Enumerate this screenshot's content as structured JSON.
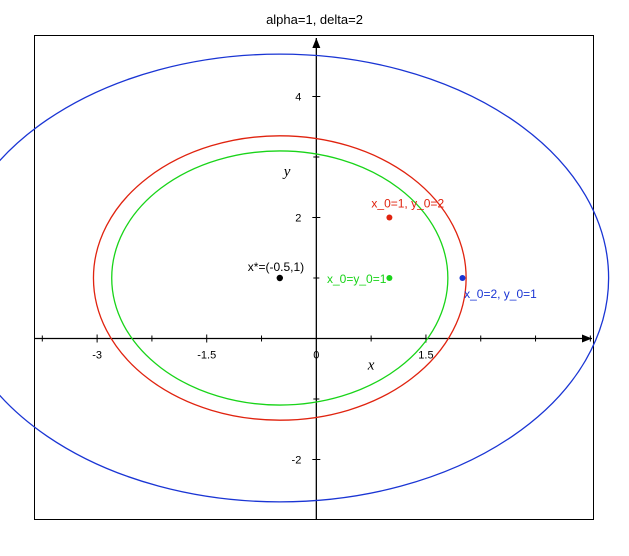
{
  "chart_data": {
    "type": "line",
    "title": "alpha=1, delta=2",
    "xlabel": "x",
    "ylabel": "y",
    "xlim": [
      -3.85,
      3.8
    ],
    "ylim": [
      -3.0,
      5.0
    ],
    "x_ticks": [
      {
        "value": -3,
        "label": "-3"
      },
      {
        "value": -1.5,
        "label": "-1.5"
      },
      {
        "value": 0,
        "label": "0"
      },
      {
        "value": 1.5,
        "label": "1.5"
      }
    ],
    "x_minor_ticks": [
      -3.75,
      -2.25,
      -0.75,
      0.75,
      2.25,
      3.0,
      3.75
    ],
    "y_ticks": [
      {
        "value": 4,
        "label": "4"
      },
      {
        "value": 2,
        "label": "2"
      },
      {
        "value": -2,
        "label": "-2"
      }
    ],
    "y_minor_ticks": [
      3,
      1,
      -1
    ],
    "grid": false,
    "series": [
      {
        "name": "x_0=2, y_0=1",
        "color": "#1a35d4",
        "center": [
          -0.5,
          1.0
        ],
        "rx": 4.5,
        "ry": 3.7,
        "start": [
          2,
          1
        ]
      },
      {
        "name": "x_0=1, y_0=2",
        "color": "#e0230f",
        "center": [
          -0.5,
          1.0
        ],
        "rx": 2.55,
        "ry": 2.35,
        "start": [
          1,
          2
        ]
      },
      {
        "name": "x_0=y_0=1",
        "color": "#19d419",
        "center": [
          -0.5,
          1.0
        ],
        "rx": 2.3,
        "ry": 2.1,
        "start": [
          1,
          1
        ]
      }
    ],
    "equilibrium": {
      "point": [
        -0.5,
        1.0
      ],
      "label": "x*=(-0.5,1)",
      "color": "#000000"
    }
  }
}
